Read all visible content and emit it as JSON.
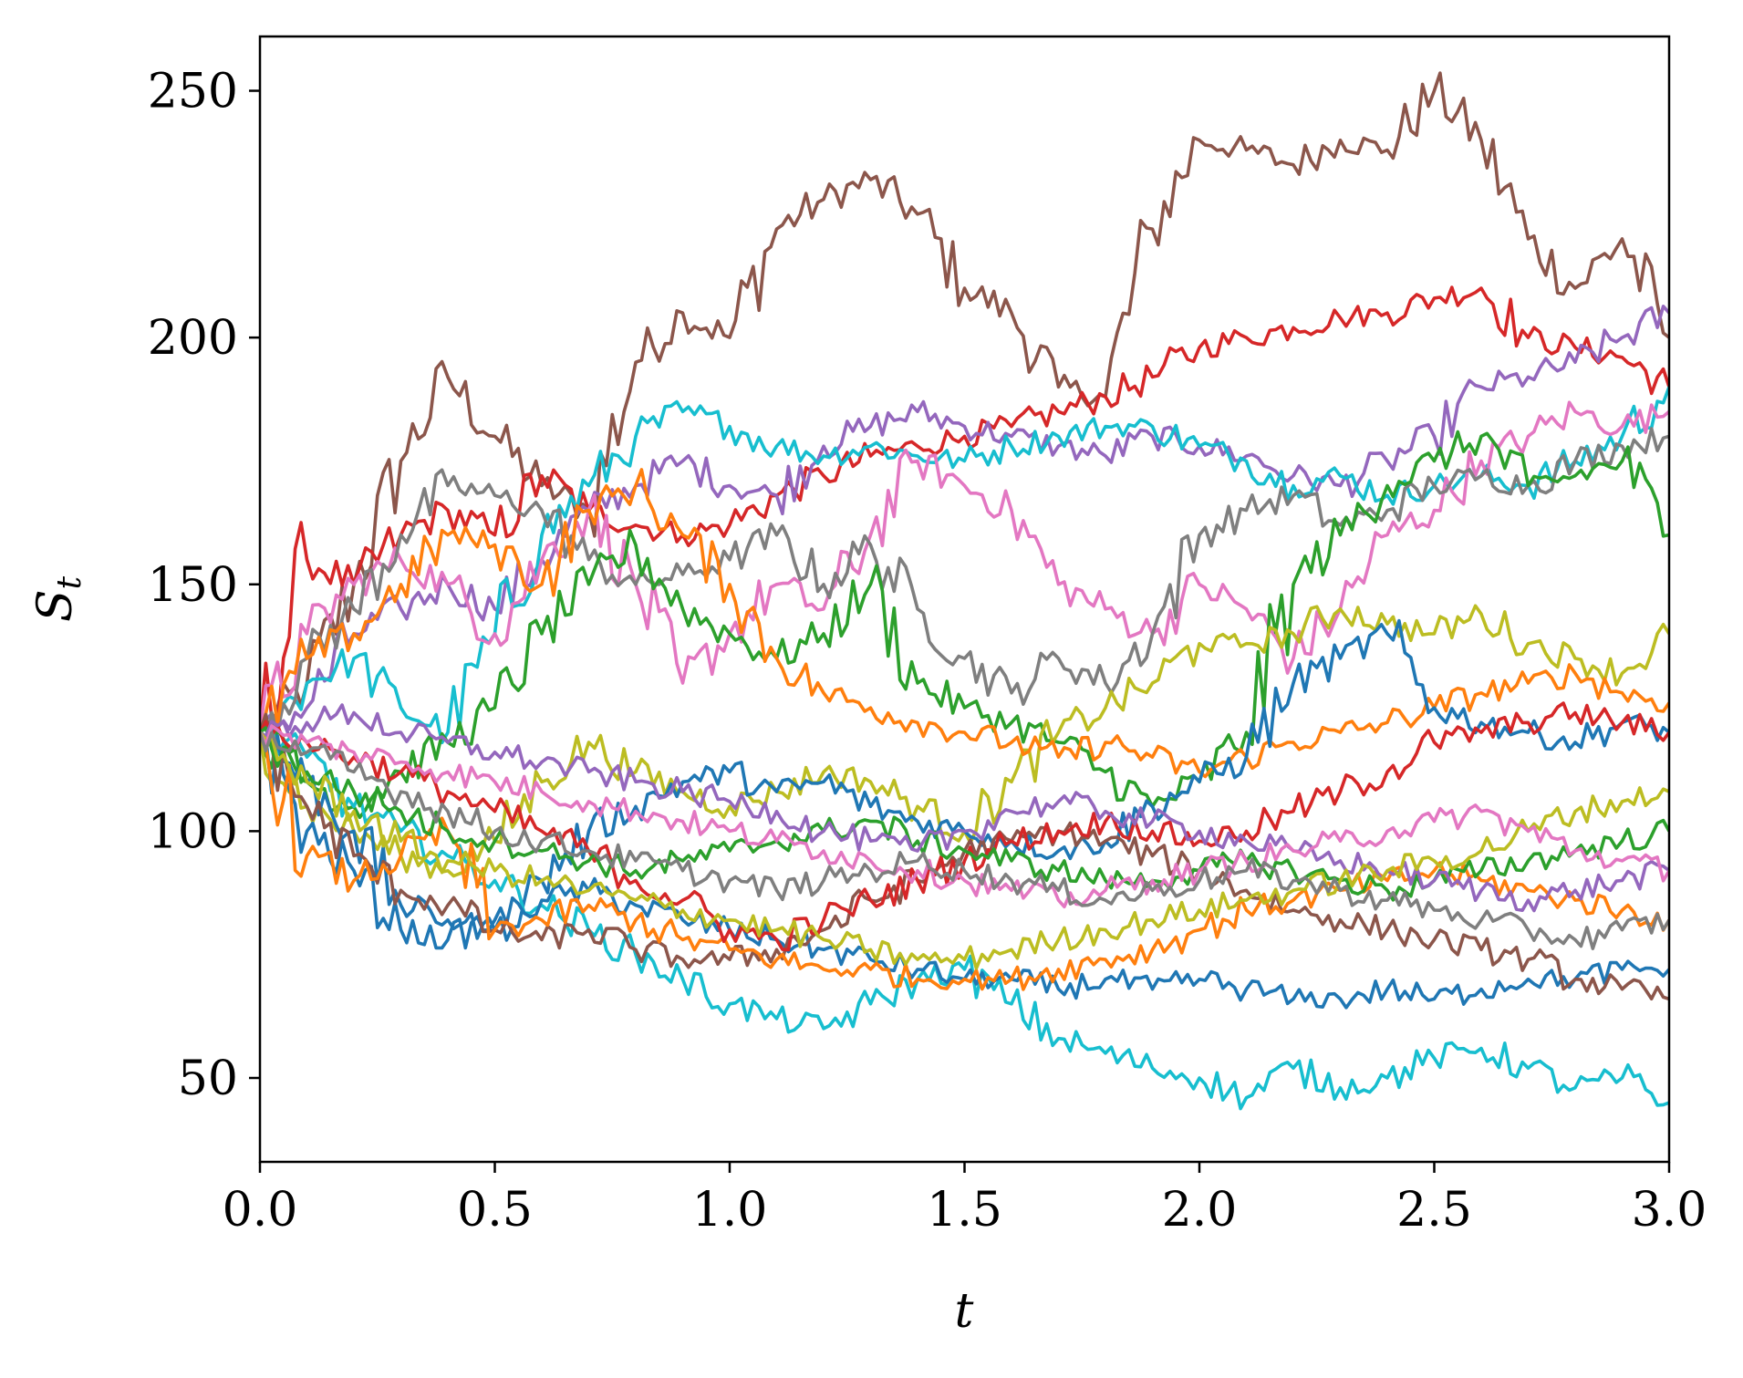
{
  "chart_data": {
    "type": "line",
    "title": "",
    "xlabel": "t",
    "ylabel": "S",
    "ylabel_subscript": "t",
    "xlim": [
      0.0,
      3.0
    ],
    "ylim": [
      33,
      261
    ],
    "grid": false,
    "legend": "none",
    "x_ticks": [
      0.0,
      0.5,
      1.0,
      1.5,
      2.0,
      2.5,
      3.0
    ],
    "x_tick_labels": [
      "0.0",
      "0.5",
      "1.0",
      "1.5",
      "2.0",
      "2.5",
      "3.0"
    ],
    "y_ticks": [
      50,
      100,
      150,
      200,
      250
    ],
    "y_tick_labels": [
      "50",
      "100",
      "150",
      "200",
      "250"
    ],
    "x": [
      0.0,
      0.1,
      0.2,
      0.3,
      0.4,
      0.5,
      0.6,
      0.7,
      0.8,
      0.9,
      1.0,
      1.1,
      1.2,
      1.3,
      1.4,
      1.5,
      1.6,
      1.7,
      1.8,
      1.9,
      2.0,
      2.1,
      2.2,
      2.3,
      2.4,
      2.5,
      2.6,
      2.7,
      2.8,
      2.9,
      3.0
    ],
    "series": [
      {
        "color": "#8c564b",
        "values": [
          120,
          130,
          150,
          175,
          192,
          180,
          170,
          165,
          195,
          205,
          200,
          222,
          228,
          232,
          225,
          210,
          205,
          190,
          188,
          222,
          240,
          238,
          235,
          240,
          238,
          250,
          240,
          220,
          210,
          220,
          200
        ]
      },
      {
        "color": "#d62728",
        "values": [
          120,
          155,
          150,
          160,
          165,
          160,
          172,
          165,
          162,
          160,
          162,
          168,
          172,
          176,
          178,
          180,
          182,
          185,
          188,
          192,
          198,
          200,
          202,
          204,
          205,
          208,
          210,
          200,
          198,
          196,
          190
        ]
      },
      {
        "color": "#9467bd",
        "values": [
          120,
          125,
          140,
          145,
          150,
          145,
          155,
          165,
          170,
          175,
          170,
          168,
          178,
          182,
          185,
          182,
          180,
          178,
          176,
          180,
          178,
          176,
          172,
          170,
          175,
          180,
          190,
          192,
          195,
          200,
          205
        ]
      },
      {
        "color": "#17becf",
        "values": [
          120,
          130,
          135,
          125,
          120,
          140,
          160,
          170,
          180,
          185,
          182,
          178,
          176,
          178,
          176,
          175,
          178,
          180,
          182,
          182,
          178,
          175,
          170,
          172,
          168,
          170,
          172,
          170,
          175,
          180,
          190
        ]
      },
      {
        "color": "#e377c2",
        "values": [
          120,
          140,
          150,
          155,
          150,
          140,
          155,
          165,
          150,
          130,
          140,
          150,
          145,
          160,
          175,
          170,
          165,
          150,
          145,
          140,
          150,
          145,
          135,
          145,
          160,
          165,
          175,
          180,
          185,
          182,
          185
        ]
      },
      {
        "color": "#7f7f7f",
        "values": [
          120,
          135,
          145,
          160,
          170,
          168,
          165,
          155,
          150,
          152,
          155,
          160,
          150,
          158,
          145,
          135,
          128,
          135,
          130,
          140,
          160,
          165,
          168,
          162,
          165,
          170,
          172,
          170,
          175,
          178,
          180
        ]
      },
      {
        "color": "#2ca02c",
        "values": [
          120,
          110,
          105,
          112,
          118,
          125,
          140,
          150,
          158,
          145,
          140,
          135,
          140,
          150,
          130,
          125,
          122,
          118,
          112,
          105,
          110,
          120,
          150,
          160,
          170,
          175,
          180,
          170,
          172,
          175,
          160
        ]
      },
      {
        "color": "#bcbd22",
        "values": [
          120,
          105,
          100,
          95,
          92,
          98,
          110,
          118,
          112,
          108,
          105,
          108,
          112,
          110,
          105,
          100,
          110,
          120,
          125,
          130,
          138,
          138,
          140,
          145,
          142,
          140,
          144,
          138,
          135,
          132,
          140
        ]
      },
      {
        "color": "#ff7f0e",
        "values": [
          120,
          135,
          140,
          150,
          160,
          158,
          150,
          165,
          170,
          160,
          150,
          135,
          128,
          125,
          122,
          120,
          118,
          115,
          118,
          115,
          112,
          115,
          118,
          120,
          122,
          125,
          128,
          130,
          132,
          128,
          126
        ]
      },
      {
        "color": "#1f77b4",
        "values": [
          120,
          110,
          100,
          85,
          82,
          80,
          90,
          100,
          105,
          110,
          112,
          108,
          110,
          105,
          102,
          100,
          98,
          96,
          98,
          105,
          110,
          115,
          130,
          135,
          140,
          125,
          122,
          120,
          118,
          122,
          120
        ]
      },
      {
        "color": "#17becf",
        "values": [
          120,
          115,
          105,
          100,
          95,
          90,
          85,
          80,
          75,
          70,
          65,
          62,
          60,
          65,
          70,
          72,
          65,
          58,
          55,
          52,
          50,
          46,
          52,
          48,
          50,
          54,
          56,
          52,
          48,
          50,
          45
        ]
      },
      {
        "color": "#1f77b4",
        "values": [
          120,
          100,
          92,
          80,
          78,
          82,
          86,
          88,
          85,
          82,
          80,
          78,
          76,
          74,
          72,
          70,
          70,
          68,
          70,
          68,
          70,
          68,
          66,
          66,
          68,
          66,
          68,
          70,
          70,
          72,
          72
        ]
      },
      {
        "color": "#8c564b",
        "values": [
          120,
          105,
          95,
          88,
          85,
          80,
          78,
          80,
          76,
          74,
          74,
          76,
          80,
          86,
          90,
          96,
          98,
          100,
          98,
          95,
          92,
          88,
          84,
          82,
          80,
          78,
          76,
          74,
          70,
          68,
          66
        ]
      },
      {
        "color": "#ff7f0e",
        "values": [
          120,
          95,
          90,
          95,
          100,
          80,
          82,
          85,
          82,
          78,
          76,
          74,
          72,
          72,
          70,
          70,
          70,
          72,
          74,
          76,
          80,
          84,
          86,
          88,
          90,
          92,
          90,
          88,
          86,
          84,
          82
        ]
      },
      {
        "color": "#d62728",
        "values": [
          120,
          118,
          115,
          112,
          108,
          104,
          100,
          96,
          90,
          86,
          80,
          78,
          82,
          86,
          90,
          94,
          98,
          100,
          102,
          100,
          98,
          100,
          104,
          108,
          112,
          118,
          120,
          122,
          124,
          122,
          120
        ]
      },
      {
        "color": "#2ca02c",
        "values": [
          120,
          112,
          108,
          104,
          100,
          98,
          96,
          94,
          92,
          94,
          96,
          98,
          100,
          102,
          98,
          96,
          94,
          92,
          90,
          90,
          92,
          94,
          92,
          90,
          88,
          90,
          92,
          94,
          96,
          98,
          100
        ]
      },
      {
        "color": "#9467bd",
        "values": [
          120,
          122,
          124,
          120,
          118,
          116,
          114,
          112,
          110,
          108,
          106,
          104,
          100,
          98,
          96,
          100,
          104,
          106,
          104,
          102,
          100,
          98,
          96,
          94,
          92,
          90,
          88,
          86,
          88,
          90,
          92
        ]
      },
      {
        "color": "#bcbd22",
        "values": [
          120,
          110,
          104,
          98,
          94,
          92,
          90,
          88,
          86,
          84,
          82,
          80,
          78,
          76,
          74,
          74,
          76,
          78,
          80,
          82,
          84,
          86,
          88,
          90,
          92,
          94,
          96,
          100,
          104,
          106,
          108
        ]
      },
      {
        "color": "#e377c2",
        "values": [
          120,
          118,
          116,
          114,
          112,
          110,
          108,
          106,
          104,
          102,
          100,
          98,
          96,
          94,
          92,
          90,
          88,
          86,
          88,
          90,
          92,
          94,
          96,
          98,
          100,
          102,
          104,
          100,
          96,
          94,
          92
        ]
      },
      {
        "color": "#7f7f7f",
        "values": [
          120,
          116,
          112,
          108,
          104,
          100,
          98,
          96,
          94,
          92,
          90,
          88,
          90,
          92,
          94,
          92,
          90,
          88,
          86,
          88,
          90,
          92,
          90,
          88,
          86,
          84,
          82,
          80,
          78,
          80,
          82
        ]
      }
    ]
  }
}
